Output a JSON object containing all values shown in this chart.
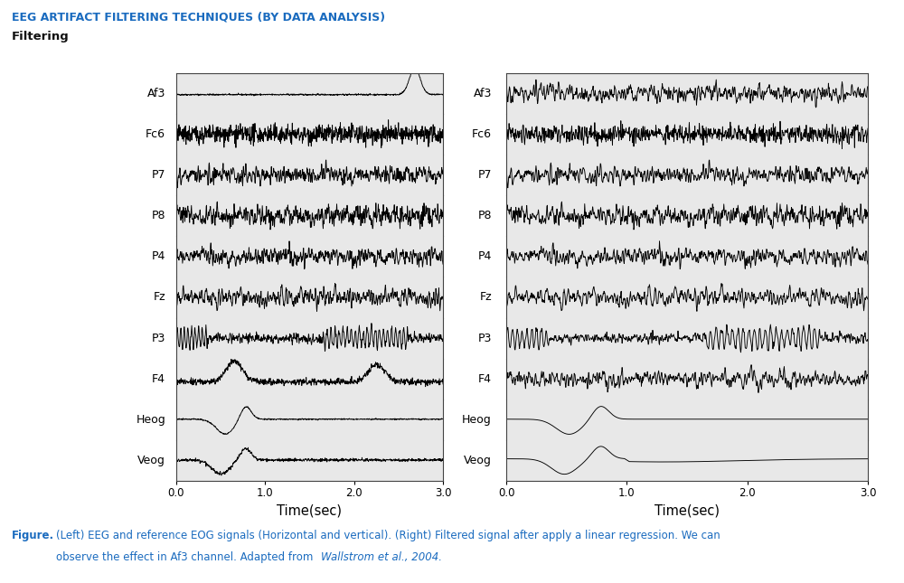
{
  "title": "EEG ARTIFACT FILTERING TECHNIQUES (BY DATA ANALYSIS)",
  "subtitle": "Filtering",
  "title_color": "#1a6bbf",
  "subtitle_color": "#111111",
  "channels": [
    "Af3",
    "Fc6",
    "P7",
    "P8",
    "P4",
    "Fz",
    "P3",
    "F4",
    "Heog",
    "Veog"
  ],
  "xlabel": "Time(sec)",
  "xticks": [
    0.0,
    1.0,
    2.0,
    3.0
  ],
  "xlim": [
    0.0,
    3.0
  ],
  "figure_caption_bold": "Figure.",
  "figure_caption_italic": "Wallstrom et al., 2004.",
  "caption_color": "#1a6bbf",
  "background_color": "#ffffff",
  "panel_bg": "#e8e8e8"
}
